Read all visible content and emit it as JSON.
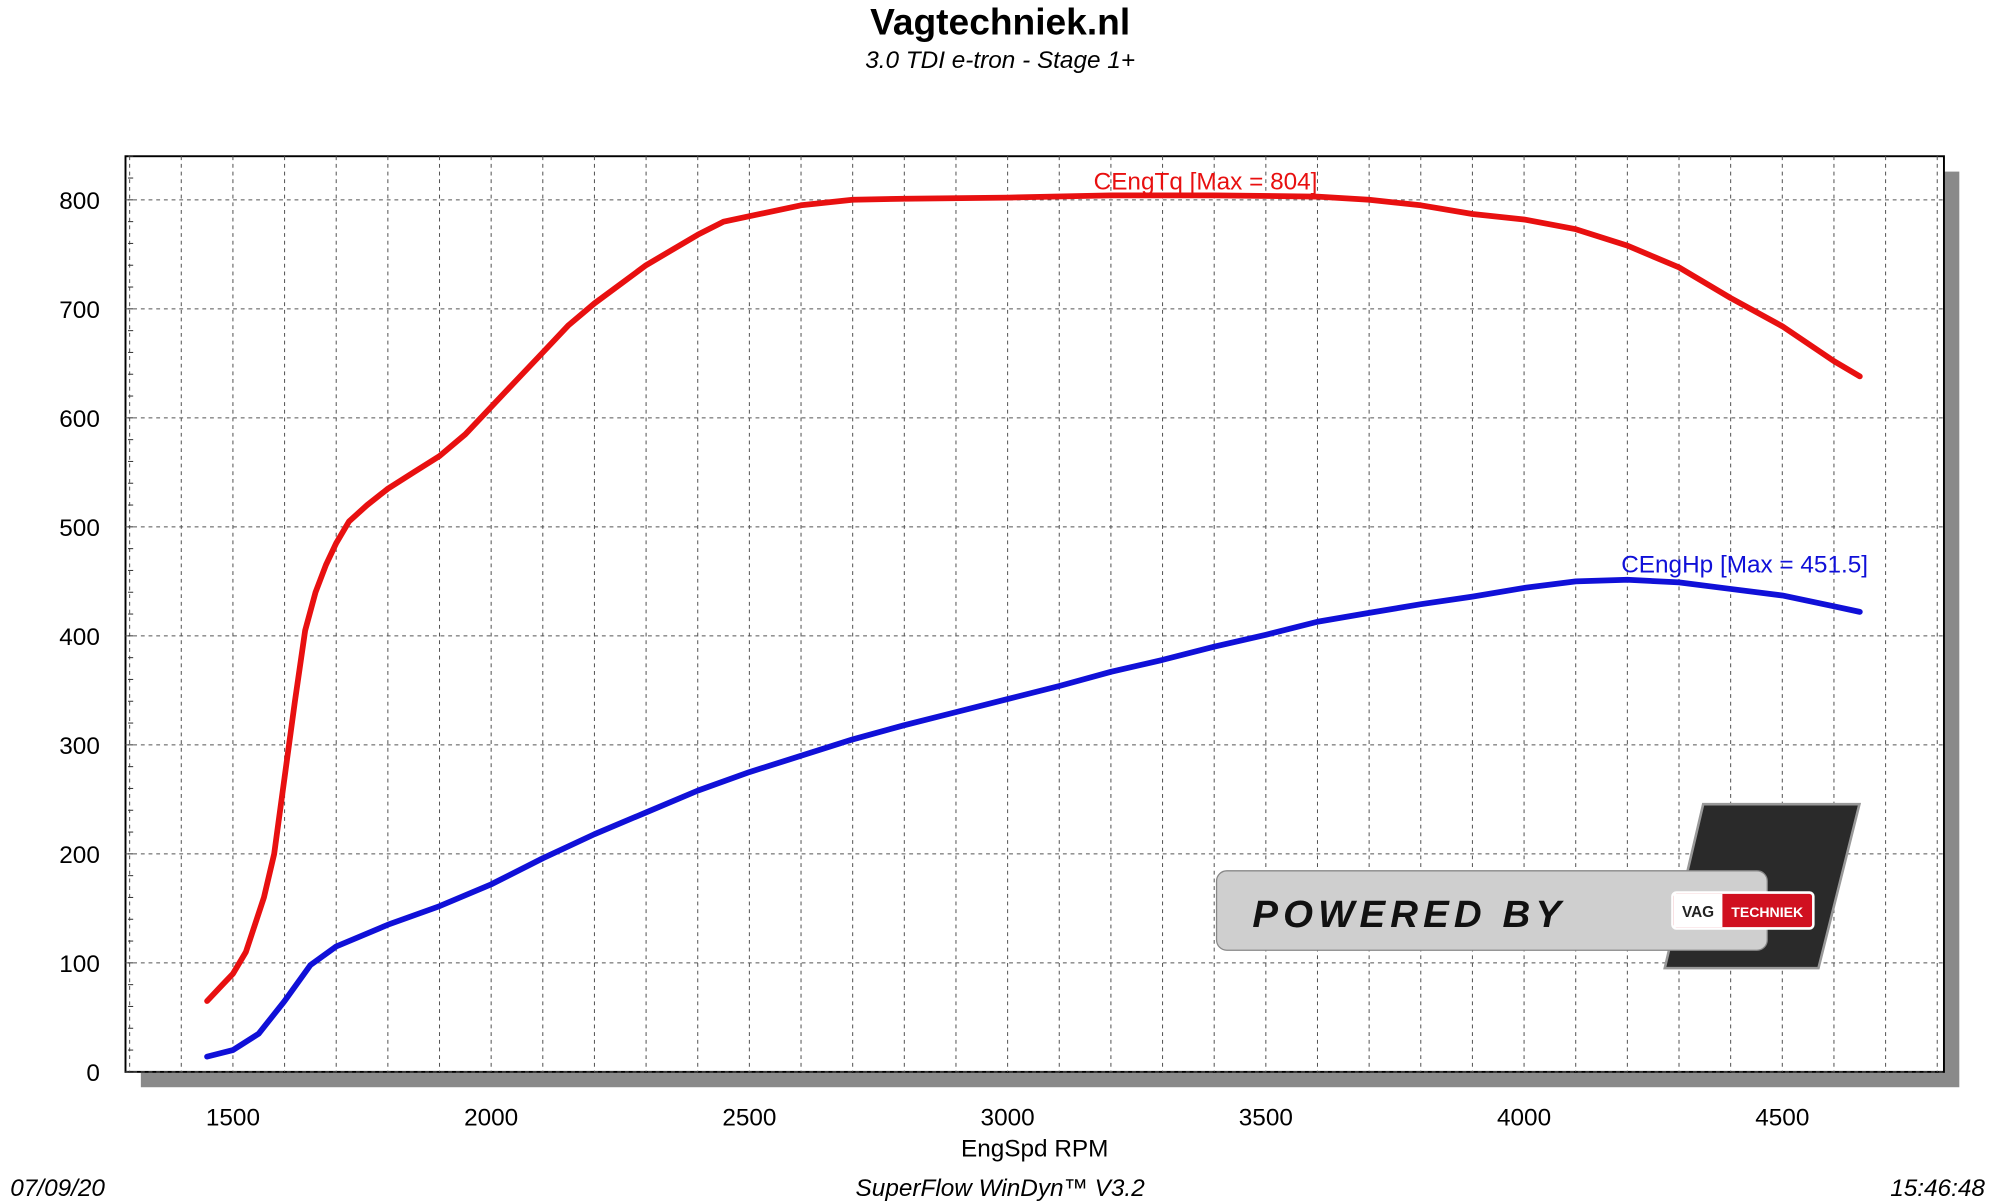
{
  "header": {
    "title": "Vagtechniek.nl",
    "subtitle": "3.0 TDI e-tron - Stage 1+"
  },
  "footer": {
    "date": "07/09/20",
    "software": "SuperFlow WinDyn™  V3.2",
    "time": "15:46:48"
  },
  "logo": {
    "text": "POWERED BY",
    "brand_left": "VAG",
    "brand_right": "TECHNIEK"
  },
  "chart_data": {
    "type": "line",
    "title": "Vagtechniek.nl",
    "subtitle": "3.0 TDI e-tron - Stage 1+",
    "xlabel": "EngSpd RPM",
    "ylabel": "",
    "xlim": [
      1292,
      4813
    ],
    "ylim": [
      0,
      840
    ],
    "xticks": [
      1500,
      2000,
      2500,
      3000,
      3500,
      4000,
      4500
    ],
    "yticks": [
      0,
      100,
      200,
      300,
      400,
      500,
      600,
      700,
      800
    ],
    "grid": true,
    "series": [
      {
        "name": "CEngTq",
        "label": "CEngTq [Max = 804]",
        "color": "#e81010",
        "x": [
          1450,
          1480,
          1500,
          1525,
          1560,
          1580,
          1600,
          1620,
          1640,
          1660,
          1680,
          1700,
          1725,
          1760,
          1800,
          1850,
          1900,
          1950,
          2000,
          2050,
          2100,
          2150,
          2200,
          2300,
          2400,
          2450,
          2500,
          2600,
          2700,
          2800,
          3000,
          3200,
          3400,
          3600,
          3700,
          3800,
          3900,
          4000,
          4100,
          4200,
          4300,
          4400,
          4500,
          4600,
          4650
        ],
        "y": [
          65,
          80,
          90,
          110,
          160,
          200,
          270,
          340,
          405,
          440,
          465,
          485,
          505,
          520,
          535,
          550,
          565,
          585,
          610,
          635,
          660,
          685,
          705,
          740,
          768,
          780,
          785,
          795,
          800,
          801,
          802,
          804,
          804,
          803,
          800,
          795,
          787,
          782,
          773,
          758,
          738,
          710,
          684,
          652,
          638
        ]
      },
      {
        "name": "CEngHp",
        "label": "CEngHp [Max = 451.5]",
        "color": "#1010d8",
        "x": [
          1450,
          1500,
          1550,
          1600,
          1650,
          1700,
          1800,
          1900,
          2000,
          2100,
          2200,
          2300,
          2400,
          2500,
          2600,
          2700,
          2800,
          2900,
          3000,
          3100,
          3200,
          3300,
          3400,
          3500,
          3600,
          3700,
          3800,
          3900,
          4000,
          4100,
          4200,
          4300,
          4400,
          4500,
          4600,
          4650
        ],
        "y": [
          14,
          20,
          35,
          65,
          98,
          115,
          135,
          152,
          172,
          196,
          218,
          238,
          258,
          275,
          290,
          305,
          318,
          330,
          342,
          354,
          367,
          378,
          390,
          401,
          413,
          421,
          429,
          436,
          444,
          450,
          451.5,
          449,
          443,
          437,
          427,
          422
        ]
      }
    ]
  }
}
